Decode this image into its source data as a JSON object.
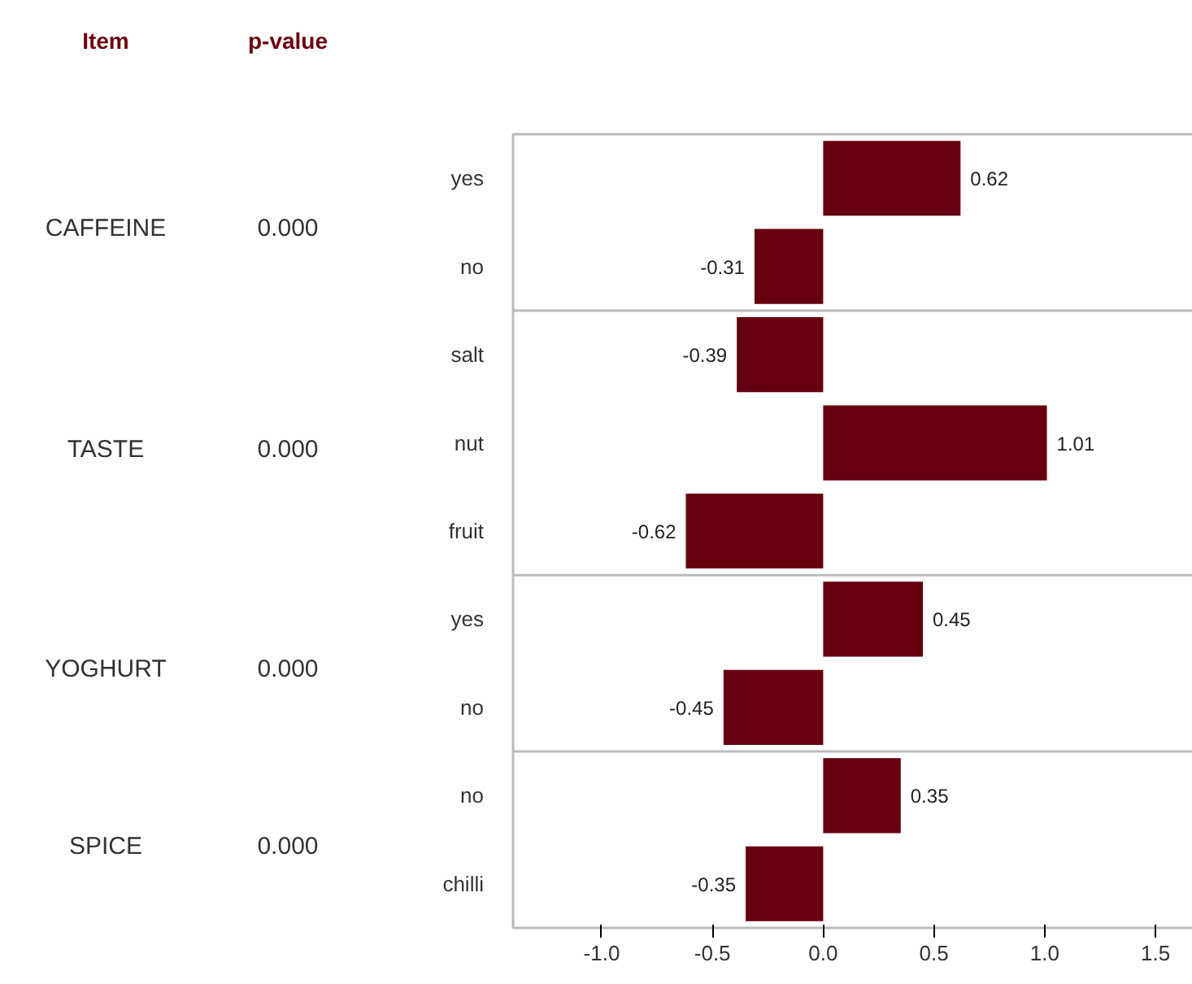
{
  "chart_data": {
    "type": "bar",
    "orientation": "horizontal",
    "color": "#660011",
    "categories": [
      "yes",
      "no",
      "salt",
      "nut",
      "fruit",
      "yes",
      "no",
      "no",
      "chilli"
    ],
    "values": [
      0.62,
      -0.31,
      -0.39,
      1.01,
      -0.62,
      0.45,
      -0.45,
      0.35,
      -0.35
    ],
    "data_labels": true,
    "xlim": [
      -1.4,
      1.72
    ],
    "xticks": [
      {
        "value": -1.0,
        "label": "-1.0"
      },
      {
        "value": -0.5,
        "label": "-0.5"
      },
      {
        "value": 0.0,
        "label": "0.0"
      },
      {
        "value": 0.5,
        "label": "0.5"
      },
      {
        "value": 1.0,
        "label": "1.0"
      },
      {
        "value": 1.5,
        "label": "1.5"
      }
    ],
    "annotations": [
      "Item",
      "p-value",
      "CAFFEINE",
      "0.000",
      "TASTE",
      "0.000",
      "YOGHURT",
      "0.000",
      "SPICE",
      "0.000"
    ]
  }
}
